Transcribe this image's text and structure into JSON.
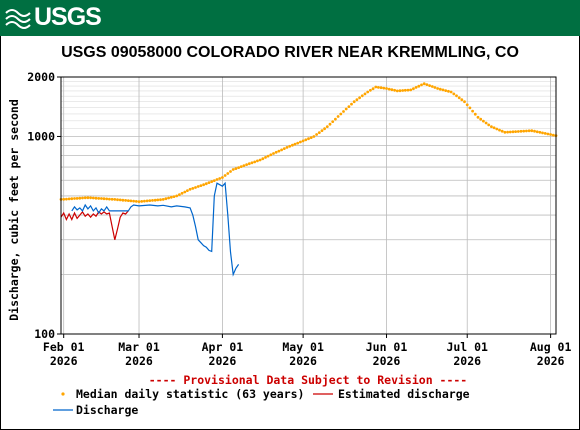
{
  "banner": {
    "logo_text": "USGS",
    "bg_color": "#006f41"
  },
  "chart_data": {
    "type": "line",
    "title": "USGS 09058000 COLORADO RIVER NEAR KREMMLING, CO",
    "ylabel": "Discharge, cubic feet per second",
    "xlabel": "",
    "y_scale": "log",
    "ylim": [
      100,
      2000
    ],
    "y_ticks": [
      100,
      1000,
      2000
    ],
    "xlim": [
      "2026-01-31",
      "2026-08-03"
    ],
    "x_ticks": [
      {
        "date": "2026-02-01",
        "label": "Feb 01",
        "year": "2026"
      },
      {
        "date": "2026-03-01",
        "label": "Mar 01",
        "year": "2026"
      },
      {
        "date": "2026-04-01",
        "label": "Apr 01",
        "year": "2026"
      },
      {
        "date": "2026-05-01",
        "label": "May 01",
        "year": "2026"
      },
      {
        "date": "2026-06-01",
        "label": "Jun 01",
        "year": "2026"
      },
      {
        "date": "2026-07-01",
        "label": "Jul 01",
        "year": "2026"
      },
      {
        "date": "2026-08-01",
        "label": "Aug 01",
        "year": "2026"
      }
    ],
    "grid": true,
    "provisional_note": "---- Provisional Data Subject to Revision ----",
    "series": [
      {
        "name": "Median daily statistic (63 years)",
        "style": "dots",
        "color": "#ffa500",
        "points": [
          [
            "2026-01-31",
            480
          ],
          [
            "2026-02-10",
            490
          ],
          [
            "2026-02-20",
            480
          ],
          [
            "2026-03-01",
            468
          ],
          [
            "2026-03-10",
            480
          ],
          [
            "2026-03-15",
            500
          ],
          [
            "2026-03-20",
            540
          ],
          [
            "2026-03-25",
            570
          ],
          [
            "2026-04-01",
            620
          ],
          [
            "2026-04-05",
            680
          ],
          [
            "2026-04-10",
            720
          ],
          [
            "2026-04-15",
            760
          ],
          [
            "2026-04-20",
            820
          ],
          [
            "2026-04-25",
            880
          ],
          [
            "2026-05-01",
            950
          ],
          [
            "2026-05-05",
            1000
          ],
          [
            "2026-05-10",
            1120
          ],
          [
            "2026-05-15",
            1300
          ],
          [
            "2026-05-20",
            1500
          ],
          [
            "2026-05-25",
            1680
          ],
          [
            "2026-05-28",
            1780
          ],
          [
            "2026-06-01",
            1750
          ],
          [
            "2026-06-05",
            1700
          ],
          [
            "2026-06-10",
            1720
          ],
          [
            "2026-06-15",
            1850
          ],
          [
            "2026-06-20",
            1750
          ],
          [
            "2026-06-25",
            1680
          ],
          [
            "2026-06-30",
            1500
          ],
          [
            "2026-07-05",
            1250
          ],
          [
            "2026-07-10",
            1120
          ],
          [
            "2026-07-15",
            1050
          ],
          [
            "2026-07-20",
            1060
          ],
          [
            "2026-07-25",
            1070
          ],
          [
            "2026-08-03",
            1010
          ]
        ]
      },
      {
        "name": "Estimated discharge",
        "style": "line",
        "color": "#cc0000",
        "points": [
          [
            "2026-01-31",
            390
          ],
          [
            "2026-02-01",
            410
          ],
          [
            "2026-02-02",
            380
          ],
          [
            "2026-02-03",
            405
          ],
          [
            "2026-02-04",
            380
          ],
          [
            "2026-02-05",
            410
          ],
          [
            "2026-02-06",
            385
          ],
          [
            "2026-02-07",
            400
          ],
          [
            "2026-02-08",
            415
          ],
          [
            "2026-02-09",
            395
          ],
          [
            "2026-02-10",
            405
          ],
          [
            "2026-02-11",
            390
          ],
          [
            "2026-02-12",
            405
          ],
          [
            "2026-02-13",
            395
          ],
          [
            "2026-02-14",
            415
          ],
          [
            "2026-02-15",
            405
          ],
          [
            "2026-02-16",
            415
          ],
          [
            "2026-02-17",
            405
          ],
          [
            "2026-02-18",
            410
          ],
          [
            "2026-02-19",
            350
          ],
          [
            "2026-02-20",
            300
          ],
          [
            "2026-02-21",
            340
          ],
          [
            "2026-02-22",
            390
          ],
          [
            "2026-02-23",
            410
          ],
          [
            "2026-02-24",
            405
          ],
          [
            "2026-02-25",
            420
          ]
        ]
      },
      {
        "name": "Discharge",
        "style": "line",
        "color": "#0066cc",
        "points": [
          [
            "2026-02-04",
            420
          ],
          [
            "2026-02-05",
            440
          ],
          [
            "2026-02-06",
            425
          ],
          [
            "2026-02-07",
            435
          ],
          [
            "2026-02-08",
            420
          ],
          [
            "2026-02-09",
            450
          ],
          [
            "2026-02-10",
            430
          ],
          [
            "2026-02-11",
            445
          ],
          [
            "2026-02-12",
            420
          ],
          [
            "2026-02-13",
            435
          ],
          [
            "2026-02-14",
            410
          ],
          [
            "2026-02-15",
            430
          ],
          [
            "2026-02-16",
            420
          ],
          [
            "2026-02-17",
            440
          ],
          [
            "2026-02-18",
            420
          ],
          [
            "2026-02-25",
            420
          ],
          [
            "2026-02-26",
            440
          ],
          [
            "2026-02-27",
            450
          ],
          [
            "2026-03-01",
            445
          ],
          [
            "2026-03-05",
            450
          ],
          [
            "2026-03-08",
            445
          ],
          [
            "2026-03-10",
            448
          ],
          [
            "2026-03-13",
            440
          ],
          [
            "2026-03-15",
            445
          ],
          [
            "2026-03-18",
            440
          ],
          [
            "2026-03-20",
            435
          ],
          [
            "2026-03-21",
            400
          ],
          [
            "2026-03-22",
            350
          ],
          [
            "2026-03-23",
            300
          ],
          [
            "2026-03-24",
            290
          ],
          [
            "2026-03-25",
            280
          ],
          [
            "2026-03-26",
            275
          ],
          [
            "2026-03-27",
            265
          ],
          [
            "2026-03-28",
            262
          ],
          [
            "2026-03-29",
            500
          ],
          [
            "2026-03-30",
            580
          ],
          [
            "2026-03-31",
            570
          ],
          [
            "2026-04-01",
            560
          ],
          [
            "2026-04-02",
            580
          ],
          [
            "2026-04-03",
            400
          ],
          [
            "2026-04-04",
            260
          ],
          [
            "2026-04-05",
            200
          ],
          [
            "2026-04-06",
            215
          ],
          [
            "2026-04-07",
            225
          ]
        ]
      }
    ]
  }
}
